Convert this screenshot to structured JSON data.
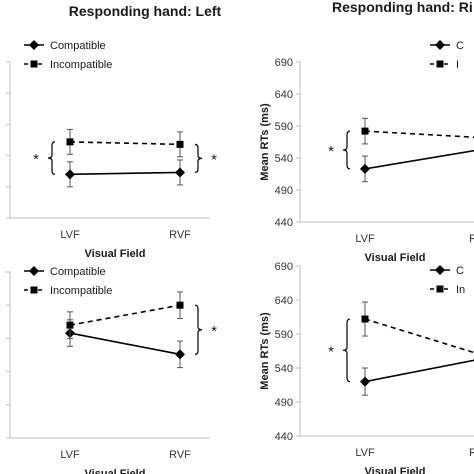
{
  "titles": {
    "left": "Responding hand: Left",
    "right": "Responding hand: Ri"
  },
  "colors": {
    "axis": "#bfbfbf",
    "line": "#000000",
    "text": "#1a1a1a"
  },
  "chart_data": [
    {
      "type": "line",
      "panel": "top-left",
      "categories": [
        "LVF",
        "RVF"
      ],
      "xlabel": "Visual Field",
      "ylabel": "",
      "ylim": [
        440,
        690
      ],
      "yticks": [
        440,
        490,
        540,
        590,
        640,
        690
      ],
      "show_ytick_labels": false,
      "legend": "top-left",
      "series": [
        {
          "name": "Compatible",
          "values": [
            510,
            513
          ],
          "errors": [
            20,
            20
          ],
          "style": "solid",
          "marker": "diamond"
        },
        {
          "name": "Incompatible",
          "values": [
            562,
            558
          ],
          "errors": [
            20,
            20
          ],
          "style": "dashed",
          "marker": "square"
        }
      ],
      "annotations": [
        {
          "text": "*",
          "at": "LVF"
        },
        {
          "text": "*",
          "at": "RVF"
        }
      ]
    },
    {
      "type": "line",
      "panel": "top-right",
      "categories": [
        "LVF",
        "RVF"
      ],
      "xlabel": "Visual Field",
      "ylabel": "Mean RTs (ms)",
      "ylim": [
        440,
        690
      ],
      "yticks": [
        440,
        490,
        540,
        590,
        640,
        690
      ],
      "show_ytick_labels": true,
      "legend": "top-right",
      "series": [
        {
          "name": "C",
          "values": [
            523,
            553
          ],
          "errors": [
            20,
            20
          ],
          "style": "solid",
          "marker": "diamond"
        },
        {
          "name": "I",
          "values": [
            582,
            572
          ],
          "errors": [
            20,
            20
          ],
          "style": "dashed",
          "marker": "square"
        }
      ],
      "annotations": [
        {
          "text": "*",
          "at": "LVF"
        }
      ]
    },
    {
      "type": "line",
      "panel": "bottom-left",
      "categories": [
        "LVF",
        "RVF"
      ],
      "xlabel": "Visual Field",
      "ylabel": "",
      "ylim": [
        440,
        690
      ],
      "yticks": [
        440,
        490,
        540,
        590,
        640,
        690
      ],
      "show_ytick_labels": false,
      "legend": "top-left",
      "series": [
        {
          "name": "Compatible",
          "values": [
            598,
            566
          ],
          "errors": [
            20,
            20
          ],
          "style": "solid",
          "marker": "diamond"
        },
        {
          "name": "Incompatible",
          "values": [
            610,
            640
          ],
          "errors": [
            20,
            20
          ],
          "style": "dashed",
          "marker": "square"
        }
      ],
      "annotations": [
        {
          "text": "*",
          "at": "RVF"
        }
      ]
    },
    {
      "type": "line",
      "panel": "bottom-right",
      "categories": [
        "LVF",
        "RVF"
      ],
      "xlabel": "Visual Field",
      "ylabel": "Mean RTs (ms)",
      "ylim": [
        440,
        690
      ],
      "yticks": [
        440,
        490,
        540,
        590,
        640,
        690
      ],
      "show_ytick_labels": true,
      "legend": "top-right",
      "series": [
        {
          "name": "C",
          "values": [
            520,
            553
          ],
          "errors": [
            20,
            20
          ],
          "style": "solid",
          "marker": "diamond"
        },
        {
          "name": "In",
          "values": [
            612,
            560
          ],
          "errors": [
            25,
            20
          ],
          "style": "dashed",
          "marker": "square"
        }
      ],
      "annotations": [
        {
          "text": "*",
          "at": "LVF"
        }
      ]
    }
  ]
}
